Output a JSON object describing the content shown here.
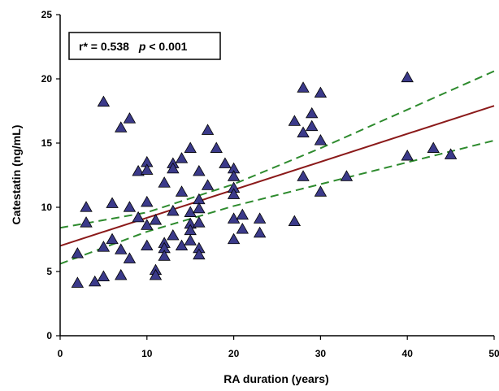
{
  "chart_data": {
    "type": "scatter",
    "title": "",
    "xlabel": "RA duration (years)",
    "ylabel": "Catestatin (ng/mL)",
    "xlim": [
      0,
      50
    ],
    "ylim": [
      0,
      25
    ],
    "xticks": [
      "0",
      "10",
      "20",
      "30",
      "40",
      "50"
    ],
    "yticks": [
      "0",
      "5",
      "10",
      "15",
      "20",
      "25"
    ],
    "annotation": {
      "r_label": "r* = 0.538",
      "p_symbol": "p",
      "p_value": " < 0.001"
    },
    "marker_color": "#3b3a8a",
    "fit_color": "#8b1a1a",
    "ci_color": "#2e8b2e",
    "regression": {
      "x": [
        0,
        50
      ],
      "y": [
        7.0,
        17.9
      ]
    },
    "ci_upper": {
      "x": [
        0,
        10,
        20,
        30,
        40,
        50
      ],
      "y": [
        8.4,
        9.6,
        11.8,
        14.6,
        17.6,
        20.6
      ]
    },
    "ci_lower": {
      "x": [
        0,
        10,
        20,
        30,
        40,
        50
      ],
      "y": [
        5.6,
        8.1,
        10.1,
        11.8,
        13.5,
        15.2
      ]
    },
    "points": [
      {
        "x": 2,
        "y": 6.4
      },
      {
        "x": 2,
        "y": 4.1
      },
      {
        "x": 3,
        "y": 10.0
      },
      {
        "x": 3,
        "y": 8.8
      },
      {
        "x": 4,
        "y": 4.2
      },
      {
        "x": 5,
        "y": 18.2
      },
      {
        "x": 5,
        "y": 6.9
      },
      {
        "x": 5,
        "y": 4.6
      },
      {
        "x": 6,
        "y": 10.3
      },
      {
        "x": 6,
        "y": 7.5
      },
      {
        "x": 7,
        "y": 16.2
      },
      {
        "x": 7,
        "y": 6.7
      },
      {
        "x": 7,
        "y": 4.7
      },
      {
        "x": 8,
        "y": 16.9
      },
      {
        "x": 8,
        "y": 10.0
      },
      {
        "x": 8,
        "y": 6.0
      },
      {
        "x": 9,
        "y": 12.8
      },
      {
        "x": 9,
        "y": 9.2
      },
      {
        "x": 10,
        "y": 13.5
      },
      {
        "x": 10,
        "y": 12.9
      },
      {
        "x": 10,
        "y": 10.4
      },
      {
        "x": 10,
        "y": 8.6
      },
      {
        "x": 10,
        "y": 7.0
      },
      {
        "x": 11,
        "y": 9.0
      },
      {
        "x": 11,
        "y": 5.1
      },
      {
        "x": 11,
        "y": 4.7
      },
      {
        "x": 12,
        "y": 11.9
      },
      {
        "x": 12,
        "y": 7.2
      },
      {
        "x": 12,
        "y": 6.8
      },
      {
        "x": 12,
        "y": 6.2
      },
      {
        "x": 13,
        "y": 13.4
      },
      {
        "x": 13,
        "y": 13.0
      },
      {
        "x": 13,
        "y": 9.7
      },
      {
        "x": 13,
        "y": 7.8
      },
      {
        "x": 14,
        "y": 13.8
      },
      {
        "x": 14,
        "y": 11.2
      },
      {
        "x": 14,
        "y": 7.0
      },
      {
        "x": 15,
        "y": 14.6
      },
      {
        "x": 15,
        "y": 9.6
      },
      {
        "x": 15,
        "y": 8.7
      },
      {
        "x": 15,
        "y": 8.2
      },
      {
        "x": 15,
        "y": 7.4
      },
      {
        "x": 16,
        "y": 12.8
      },
      {
        "x": 16,
        "y": 10.6
      },
      {
        "x": 16,
        "y": 9.9
      },
      {
        "x": 16,
        "y": 8.8
      },
      {
        "x": 16,
        "y": 6.8
      },
      {
        "x": 16,
        "y": 6.3
      },
      {
        "x": 17,
        "y": 16.0
      },
      {
        "x": 17,
        "y": 11.7
      },
      {
        "x": 18,
        "y": 14.6
      },
      {
        "x": 19,
        "y": 13.4
      },
      {
        "x": 20,
        "y": 13.0
      },
      {
        "x": 20,
        "y": 12.4
      },
      {
        "x": 20,
        "y": 11.5
      },
      {
        "x": 20,
        "y": 11.0
      },
      {
        "x": 20,
        "y": 9.1
      },
      {
        "x": 20,
        "y": 7.5
      },
      {
        "x": 21,
        "y": 9.4
      },
      {
        "x": 21,
        "y": 8.3
      },
      {
        "x": 23,
        "y": 9.1
      },
      {
        "x": 23,
        "y": 8.0
      },
      {
        "x": 27,
        "y": 16.7
      },
      {
        "x": 27,
        "y": 8.9
      },
      {
        "x": 28,
        "y": 19.3
      },
      {
        "x": 28,
        "y": 15.8
      },
      {
        "x": 28,
        "y": 12.4
      },
      {
        "x": 29,
        "y": 17.3
      },
      {
        "x": 29,
        "y": 16.3
      },
      {
        "x": 30,
        "y": 18.9
      },
      {
        "x": 30,
        "y": 15.2
      },
      {
        "x": 30,
        "y": 11.2
      },
      {
        "x": 33,
        "y": 12.4
      },
      {
        "x": 40,
        "y": 20.1
      },
      {
        "x": 40,
        "y": 14.0
      },
      {
        "x": 43,
        "y": 14.6
      },
      {
        "x": 45,
        "y": 14.1
      }
    ]
  }
}
